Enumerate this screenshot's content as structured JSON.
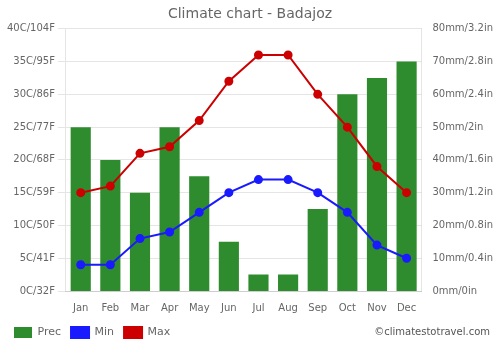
{
  "chart_data": {
    "type": "bar",
    "title": "Climate chart - Badajoz",
    "categories": [
      "Jan",
      "Feb",
      "Mar",
      "Apr",
      "May",
      "Jun",
      "Jul",
      "Aug",
      "Sep",
      "Oct",
      "Nov",
      "Dec"
    ],
    "series": [
      {
        "name": "Prec",
        "type": "bar",
        "axis": "y2",
        "color": "#2e8b2e",
        "values": [
          50,
          40,
          30,
          50,
          35,
          15,
          5,
          5,
          25,
          60,
          65,
          70
        ]
      },
      {
        "name": "Min",
        "type": "line",
        "color": "#1a1aff",
        "marker": "circle",
        "values": [
          4,
          4,
          8,
          9,
          12,
          15,
          17,
          17,
          15,
          12,
          7,
          5
        ]
      },
      {
        "name": "Max",
        "type": "line",
        "color": "#cc0000",
        "marker": "circle",
        "values": [
          15,
          16,
          21,
          22,
          26,
          32,
          36,
          36,
          30,
          25,
          19,
          15
        ]
      }
    ],
    "ylim": [
      0,
      40
    ],
    "yticks": [
      {
        "value": 0,
        "label": "0C/32F"
      },
      {
        "value": 5,
        "label": "5C/41F"
      },
      {
        "value": 10,
        "label": "10C/50F"
      },
      {
        "value": 15,
        "label": "15C/59F"
      },
      {
        "value": 20,
        "label": "20C/68F"
      },
      {
        "value": 25,
        "label": "25C/77F"
      },
      {
        "value": 30,
        "label": "30C/86F"
      },
      {
        "value": 35,
        "label": "35C/95F"
      },
      {
        "value": 40,
        "label": "40C/104F"
      }
    ],
    "y2lim": [
      0,
      80
    ],
    "y2ticks": [
      {
        "value": 0,
        "label": "0mm/0in"
      },
      {
        "value": 10,
        "label": "10mm/0.4in"
      },
      {
        "value": 20,
        "label": "20mm/0.8in"
      },
      {
        "value": 30,
        "label": "30mm/1.2in"
      },
      {
        "value": 40,
        "label": "40mm/1.6in"
      },
      {
        "value": 50,
        "label": "50mm/2in"
      },
      {
        "value": 60,
        "label": "60mm/2.4in"
      },
      {
        "value": 70,
        "label": "70mm/2.8in"
      },
      {
        "value": 80,
        "label": "80mm/3.2in"
      }
    ],
    "grid": true,
    "legend": "bottom",
    "annotations": [
      "©climatestotravel.com"
    ]
  }
}
